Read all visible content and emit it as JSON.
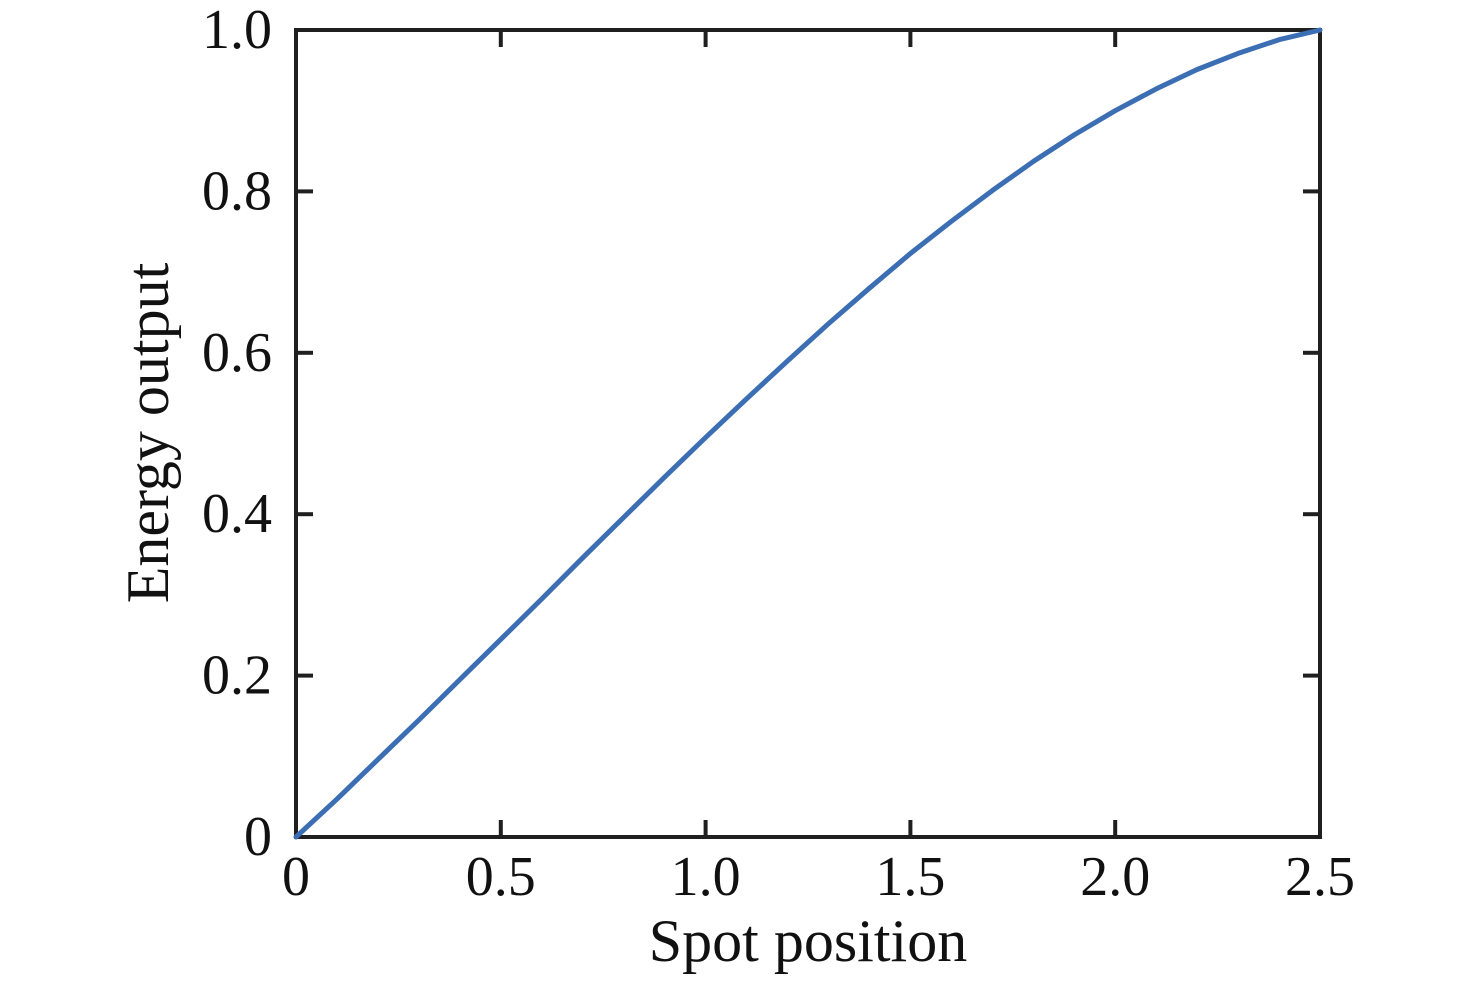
{
  "figure": {
    "background_color": "#ffffff"
  },
  "chart_data": {
    "type": "line",
    "title": "",
    "xlabel": "Spot position",
    "ylabel": "Energy output",
    "xlim": [
      0,
      2.5
    ],
    "ylim": [
      0,
      1.0
    ],
    "grid": false,
    "legend": "none",
    "frame": "full-box-with-inward-mirrored-ticks",
    "axis_color": "#1f1f1f",
    "tick_label_color": "#111111",
    "x_ticks": {
      "values": [
        0,
        0.5,
        1.0,
        1.5,
        2.0,
        2.5
      ],
      "labels": [
        "0",
        "0.5",
        "1.0",
        "1.5",
        "2.0",
        "2.5"
      ]
    },
    "y_ticks": {
      "values": [
        0,
        0.2,
        0.4,
        0.6,
        0.8,
        1.0
      ],
      "labels": [
        "0",
        "0.2",
        "0.4",
        "0.6",
        "0.8",
        "1.0"
      ]
    },
    "series": [
      {
        "name": "energy output vs spot position",
        "color": "#3c6eb4",
        "x": [
          0,
          0.1,
          0.2,
          0.3,
          0.4,
          0.5,
          0.6,
          0.7,
          0.8,
          0.9,
          1.0,
          1.1,
          1.2,
          1.3,
          1.4,
          1.5,
          1.6,
          1.7,
          1.8,
          1.9,
          2.0,
          2.1,
          2.2,
          2.3,
          2.4,
          2.5
        ],
        "y": [
          0,
          0.047,
          0.096,
          0.145,
          0.195,
          0.245,
          0.295,
          0.346,
          0.396,
          0.446,
          0.495,
          0.543,
          0.59,
          0.636,
          0.68,
          0.723,
          0.763,
          0.801,
          0.837,
          0.87,
          0.9,
          0.927,
          0.951,
          0.971,
          0.988,
          1.0
        ]
      }
    ]
  }
}
